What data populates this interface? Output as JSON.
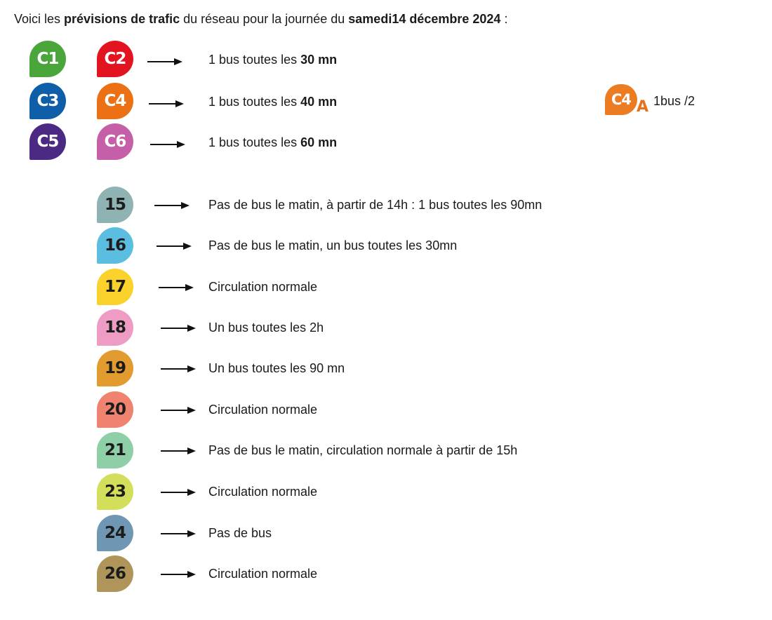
{
  "intro": {
    "prefix": "Voici les ",
    "bold1": "prévisions de trafic",
    "middle": " du réseau pour la journée du ",
    "bold2": "samedi14 décembre 2024",
    "suffix": " :"
  },
  "c_lines": [
    {
      "left": {
        "label": "C1",
        "color": "#4aa53a"
      },
      "right": {
        "label": "C2",
        "color": "#e2141f"
      },
      "text": "1 bus toutes les ",
      "bold": "30 mn"
    },
    {
      "left": {
        "label": "C3",
        "color": "#0f5ea8"
      },
      "right": {
        "label": "C4",
        "color": "#ec7014"
      },
      "text": "1 bus toutes les ",
      "bold": "40 mn"
    },
    {
      "left": {
        "label": "C5",
        "color": "#4b2a84"
      },
      "right": {
        "label": "C6",
        "color": "#c560a8"
      },
      "text": "1 bus toutes les ",
      "bold": "60 mn"
    }
  ],
  "c4a": {
    "label": "C4",
    "suffix": "A",
    "color": "#ec7c22",
    "text": "1bus /2"
  },
  "lines": [
    {
      "label": "15",
      "color": "#8fb3b3",
      "text": "Pas de bus le matin, à partir de 14h : 1 bus toutes les 90mn"
    },
    {
      "label": "16",
      "color": "#5bbde0",
      "text": "Pas de bus le matin, un bus toutes les 30mn"
    },
    {
      "label": "17",
      "color": "#fbd22c",
      "text": "Circulation normale"
    },
    {
      "label": "18",
      "color": "#ef9cc5",
      "text": "Un bus toutes les 2h"
    },
    {
      "label": "19",
      "color": "#e19b2e",
      "text": "Un bus toutes les 90 mn"
    },
    {
      "label": "20",
      "color": "#ef8370",
      "text": "Circulation normale"
    },
    {
      "label": "21",
      "color": "#8fcfa8",
      "text": "Pas de bus le matin, circulation normale à partir de 15h"
    },
    {
      "label": "23",
      "color": "#d3df5a",
      "text": "Circulation normale"
    },
    {
      "label": "24",
      "color": "#6f97b3",
      "text": "Pas de bus"
    },
    {
      "label": "26",
      "color": "#b0955a",
      "text": "Circulation normale"
    }
  ]
}
